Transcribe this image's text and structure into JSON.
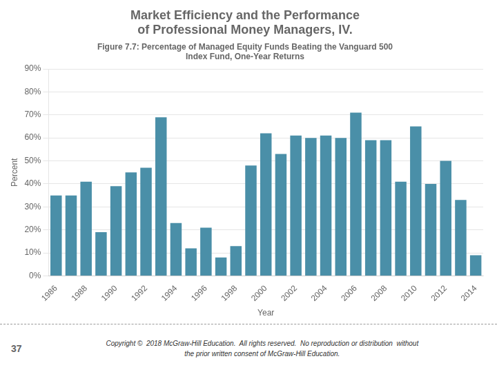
{
  "chart_data": {
    "type": "bar",
    "title": "Market Efficiency and the Performance\nof Professional Money Managers, IV.",
    "subtitle": "Figure 7.7: Percentage of Managed Equity Funds Beating the Vanguard 500\nIndex Fund, One-Year Returns",
    "categories": [
      "1986",
      null,
      "1988",
      null,
      "1990",
      null,
      "1992",
      null,
      "1994",
      null,
      "1996",
      null,
      "1998",
      null,
      "2000",
      null,
      "2002",
      null,
      "2004",
      null,
      "2006",
      null,
      "2008",
      null,
      "2010",
      null,
      "2012",
      null,
      "2014"
    ],
    "values": [
      35,
      35,
      41,
      19,
      39,
      45,
      47,
      69,
      23,
      12,
      21,
      8,
      13,
      48,
      62,
      53,
      61,
      60,
      61,
      60,
      71,
      59,
      59,
      41,
      65,
      40,
      50,
      33,
      9
    ],
    "color": "#4A8FA8",
    "xlabel": "Year",
    "ylabel": "Percent",
    "ylim": [
      0,
      90
    ],
    "yticks": [
      {
        "value": 0,
        "label": "0%"
      },
      {
        "value": 10,
        "label": "10%"
      },
      {
        "value": 20,
        "label": "20%"
      },
      {
        "value": 30,
        "label": "30%"
      },
      {
        "value": 40,
        "label": "40%"
      },
      {
        "value": 50,
        "label": "50%"
      },
      {
        "value": 60,
        "label": "60%"
      },
      {
        "value": 70,
        "label": "70%"
      },
      {
        "value": 80,
        "label": "80%"
      },
      {
        "value": 90,
        "label": "90%"
      }
    ],
    "grid": true,
    "annotations": [
      "37",
      "Copyright ©  2018 McGraw-Hill Education.  All rights reserved.  No reproduction or distribution  without\nthe prior written consent of McGraw-Hill Education."
    ]
  }
}
